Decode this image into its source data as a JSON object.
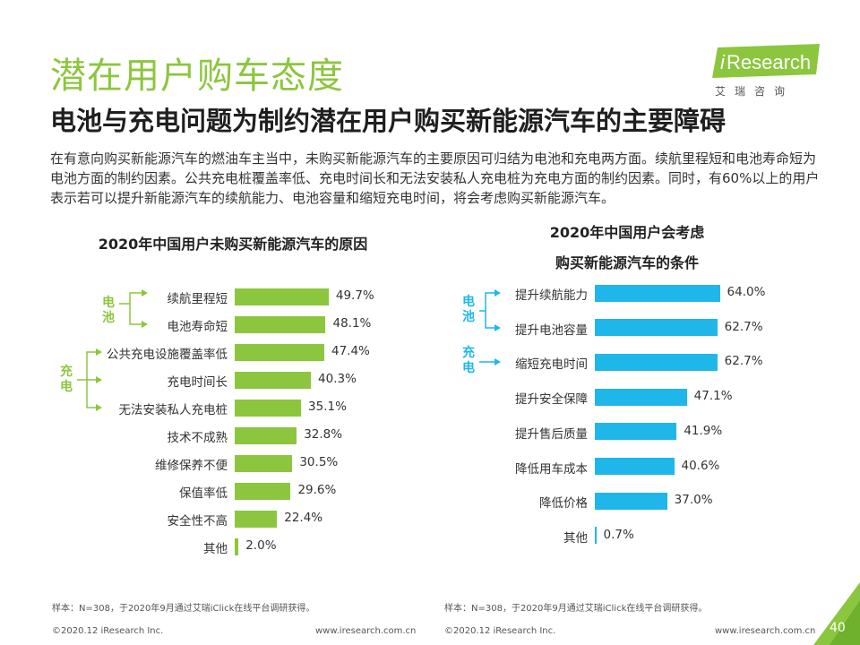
{
  "header": {
    "title": "潜在用户购车态度",
    "subtitle": "电池与充电问题为制约潜在用户购买新能源汽车的主要障碍",
    "paragraph": "在有意向购买新能源汽车的燃油车主当中，未购买新能源汽车的主要原因可归结为电池和充电两方面。续航里程短和电池寿命短为电池方面的制约因素。公共充电桩覆盖率低、充电时间长和无法安装私人充电桩为充电方面的制约因素。同时，有60%以上的用户表示若可以提升新能源汽车的续航能力、电池容量和缩短充电时间，将会考虑购买新能源汽车。"
  },
  "logo": {
    "brand_i": "i",
    "brand_rest": "Research",
    "chinese": "艾瑞咨询"
  },
  "colors": {
    "accent_green": "#8cc63e",
    "accent_blue": "#1fb7ea",
    "text": "#333333"
  },
  "chart_data": [
    {
      "type": "bar",
      "orientation": "horizontal",
      "title": "2020年中国用户未购买新能源汽车的原因",
      "categories": [
        "续航里程短",
        "电池寿命短",
        "公共充电设施覆盖率低",
        "充电时间长",
        "无法安装私人充电桩",
        "技术不成熟",
        "维修保养不便",
        "保值率低",
        "安全性不高",
        "其他"
      ],
      "values": [
        49.7,
        48.1,
        47.4,
        40.3,
        35.1,
        32.8,
        30.5,
        29.6,
        22.4,
        2.0
      ],
      "labels": [
        "49.7%",
        "48.1%",
        "47.4%",
        "40.3%",
        "35.1%",
        "32.8%",
        "30.5%",
        "29.6%",
        "22.4%",
        "2.0%"
      ],
      "groups": [
        {
          "name": "电池",
          "members": [
            0,
            1
          ]
        },
        {
          "name": "充电",
          "members": [
            2,
            3,
            4
          ]
        }
      ],
      "unit": "%",
      "color": "#8cc63e"
    },
    {
      "type": "bar",
      "orientation": "horizontal",
      "title_line1": "2020年中国用户会考虑",
      "title_line2": "购买新能源汽车的条件",
      "categories": [
        "提升续航能力",
        "提升电池容量",
        "缩短充电时间",
        "提升安全保障",
        "提升售后质量",
        "降低用车成本",
        "降低价格",
        "其他"
      ],
      "values": [
        64.0,
        62.7,
        62.7,
        47.1,
        41.9,
        40.6,
        37.0,
        0.7
      ],
      "labels": [
        "64.0%",
        "62.7%",
        "62.7%",
        "47.1%",
        "41.9%",
        "40.6%",
        "37.0%",
        "0.7%"
      ],
      "groups": [
        {
          "name": "电池",
          "members": [
            0,
            1
          ]
        },
        {
          "name": "充电",
          "members": [
            2
          ]
        }
      ],
      "unit": "%",
      "color": "#1fb7ea"
    }
  ],
  "notes": {
    "left": "样本：N=308，于2020年9月通过艾瑞iClick在线平台调研获得。",
    "right": "样本：N=308，于2020年9月通过艾瑞iClick在线平台调研获得。"
  },
  "footer": {
    "copyright_left": "©2020.12 iResearch Inc.",
    "url_left": "www.iresearch.com.cn",
    "copyright_right": "©2020.12 iResearch Inc.",
    "url_right": "www.iresearch.com.cn",
    "page_number": "40"
  }
}
